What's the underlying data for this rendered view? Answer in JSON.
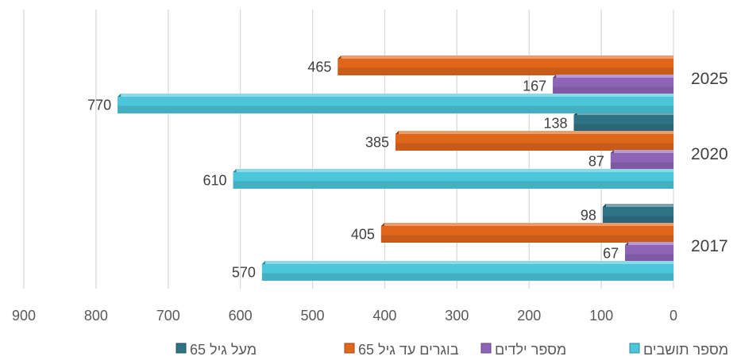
{
  "chart_data": {
    "type": "bar",
    "orientation": "horizontal",
    "x_reversed": true,
    "categories": [
      "2017",
      "2020",
      "2025"
    ],
    "series": [
      {
        "name": "מספר תושבים",
        "values": [
          570,
          610,
          770
        ],
        "color": "#4CC6DA"
      },
      {
        "name": "מספר ילדים",
        "values": [
          67,
          87,
          167
        ],
        "color": "#8E65B6"
      },
      {
        "name": "בוגרים עד גיל 65",
        "values": [
          405,
          385,
          465
        ],
        "color": "#E0661A"
      },
      {
        "name": "מעל גיל 65",
        "values": [
          98,
          138,
          null
        ],
        "color": "#2F7286"
      }
    ],
    "xlim": [
      0,
      900
    ],
    "xticks": [
      "0",
      "100",
      "200",
      "300",
      "400",
      "500",
      "600",
      "700",
      "800",
      "900"
    ],
    "grid": true,
    "legend_position": "bottom"
  }
}
